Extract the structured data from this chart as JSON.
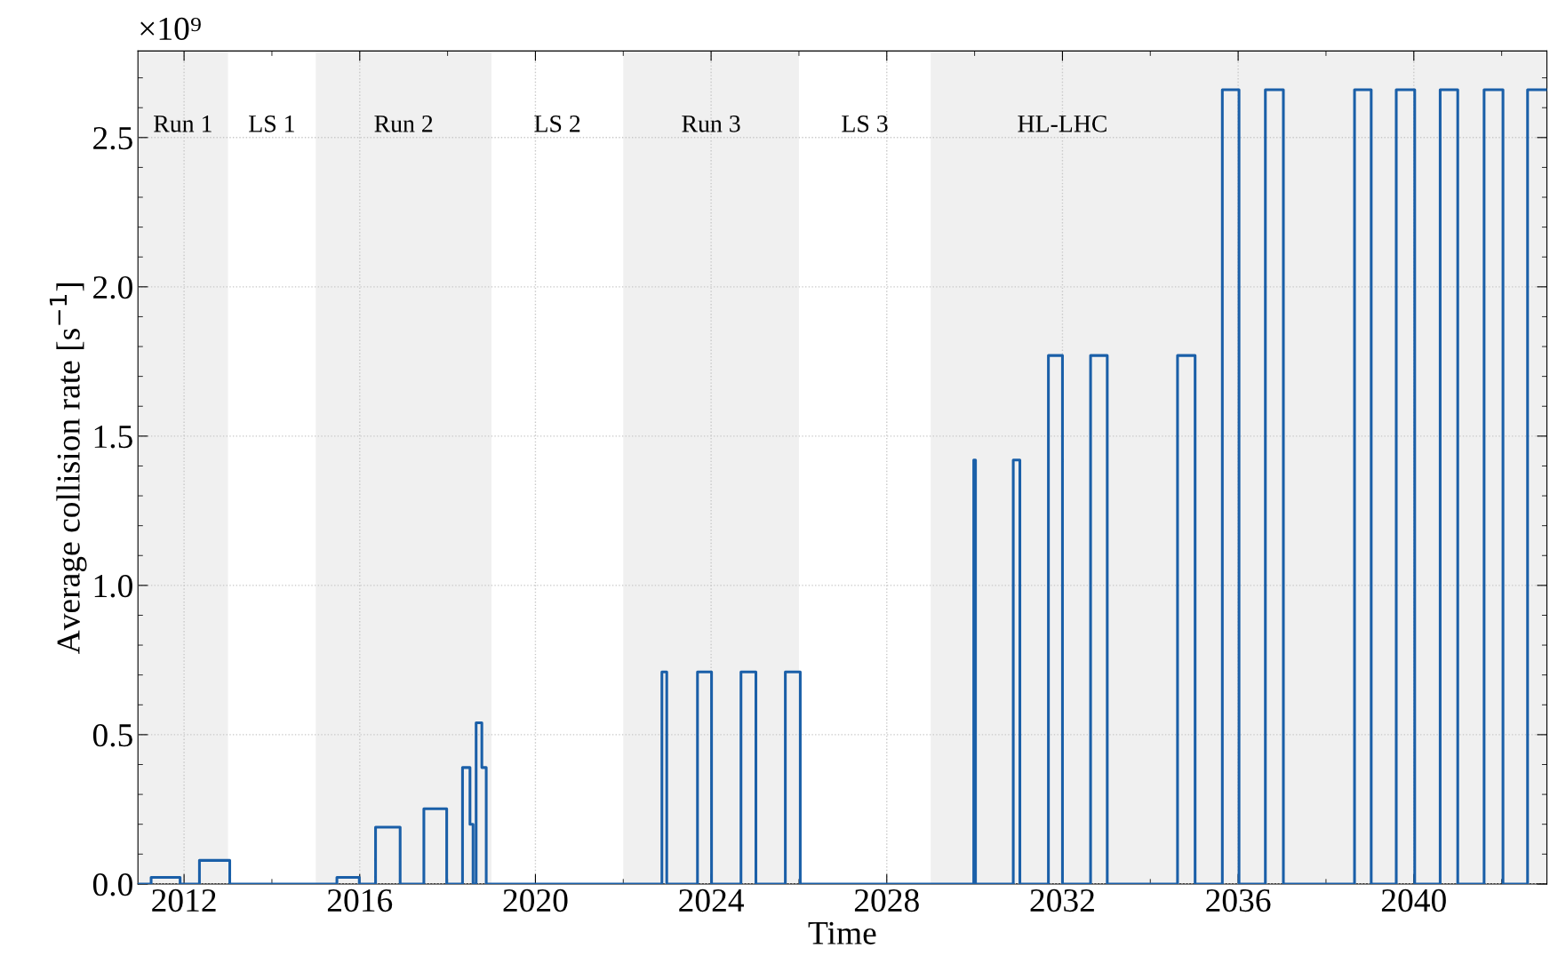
{
  "chart_data": {
    "type": "step",
    "xlabel": "Time",
    "ylabel": "Average collision rate [s$^{−1}$]",
    "annotations": [
      "×10⁹",
      "LS 1",
      "LS 2",
      "LS 3"
    ],
    "x": [
      2010.95,
      2011.25,
      2011.91,
      2012.35,
      2013.04,
      2015.48,
      2015.99,
      2016.36,
      2016.92,
      2017.46,
      2017.98,
      2018.34,
      2018.51,
      2018.58,
      2018.65,
      2018.78,
      2018.88,
      2022.88,
      2022.99,
      2023.69,
      2024.01,
      2024.68,
      2025.02,
      2025.69,
      2026.03,
      2029.98,
      2030.02,
      2030.88,
      2031.03,
      2031.68,
      2032.0,
      2032.64,
      2033.02,
      2034.62,
      2035.02,
      2035.64,
      2036.02,
      2036.62,
      2037.03,
      2038.65,
      2039.03,
      2039.6,
      2040.02,
      2040.6,
      2041.0,
      2041.6,
      2042.03,
      2042.59,
      2043.03
    ],
    "series": [
      {
        "color": "#1a5fa8",
        "values": [
          0,
          0.022,
          0,
          0.079,
          0,
          0.022,
          0,
          0.19,
          0,
          0.252,
          0,
          0.39,
          0.2,
          0,
          0.54,
          0.39,
          0,
          0.71,
          0,
          0.71,
          0,
          0.71,
          0,
          0.71,
          0,
          1.42,
          0,
          1.42,
          0,
          1.77,
          0,
          1.77,
          0,
          1.77,
          0,
          2.66,
          0,
          2.66,
          0,
          2.66,
          0,
          2.66,
          0,
          2.66,
          0,
          2.66,
          0,
          2.66,
          2.66
        ]
      }
    ],
    "xlim": [
      2010.95,
      2043.03
    ],
    "xticks": [
      2012,
      {
        "value": 2014,
        "label": null
      },
      2016,
      {
        "value": 2018,
        "label": null
      },
      2020,
      {
        "value": 2022,
        "label": null
      },
      2024,
      {
        "value": 2026,
        "label": null
      },
      2028,
      {
        "value": 2030,
        "label": null
      },
      2032,
      {
        "value": 2034,
        "label": null
      },
      2036,
      {
        "value": 2038,
        "label": null
      },
      2040,
      {
        "value": 2042,
        "label": null
      }
    ],
    "ylim": [
      0,
      2.79
    ],
    "yticks": [
      {
        "value": 0,
        "label": "0.0"
      },
      {
        "value": 0.1,
        "label": null
      },
      {
        "value": 0.2,
        "label": null
      },
      {
        "value": 0.3,
        "label": null
      },
      {
        "value": 0.4,
        "label": null
      },
      0.5,
      {
        "value": 0.6,
        "label": null
      },
      {
        "value": 0.7,
        "label": null
      },
      {
        "value": 0.8,
        "label": null
      },
      {
        "value": 0.9,
        "label": null
      },
      {
        "value": 1.0,
        "label": "1.0"
      },
      {
        "value": 1.1,
        "label": null
      },
      {
        "value": 1.2,
        "label": null
      },
      {
        "value": 1.3,
        "label": null
      },
      {
        "value": 1.4,
        "label": null
      },
      1.5,
      {
        "value": 1.6,
        "label": null
      },
      {
        "value": 1.7,
        "label": null
      },
      {
        "value": 1.8,
        "label": null
      },
      {
        "value": 1.9,
        "label": null
      },
      {
        "value": 2.0,
        "label": "2.0"
      },
      {
        "value": 2.1,
        "label": null
      },
      {
        "value": 2.2,
        "label": null
      },
      {
        "value": 2.3,
        "label": null
      },
      {
        "value": 2.4,
        "label": null
      },
      2.5,
      {
        "value": 2.6,
        "label": null
      },
      {
        "value": 2.7,
        "label": null
      }
    ],
    "bands": [
      {
        "axis": "x",
        "from": 2010.95,
        "to": 2013.0,
        "label": "Run 1",
        "color": "#f0f0f0"
      },
      {
        "axis": "x",
        "from": 2015.0,
        "to": 2019.0,
        "label": "Run 2",
        "color": "#f0f0f0"
      },
      {
        "axis": "x",
        "from": 2022.0,
        "to": 2026.0,
        "label": "Run 3",
        "color": "#f0f0f0"
      },
      {
        "axis": "x",
        "from": 2029.0,
        "to": 2043.03,
        "label": "HL-LHC",
        "color": "#f0f0f0"
      }
    ],
    "grid": true,
    "line_style": "solid",
    "marker": "none"
  }
}
